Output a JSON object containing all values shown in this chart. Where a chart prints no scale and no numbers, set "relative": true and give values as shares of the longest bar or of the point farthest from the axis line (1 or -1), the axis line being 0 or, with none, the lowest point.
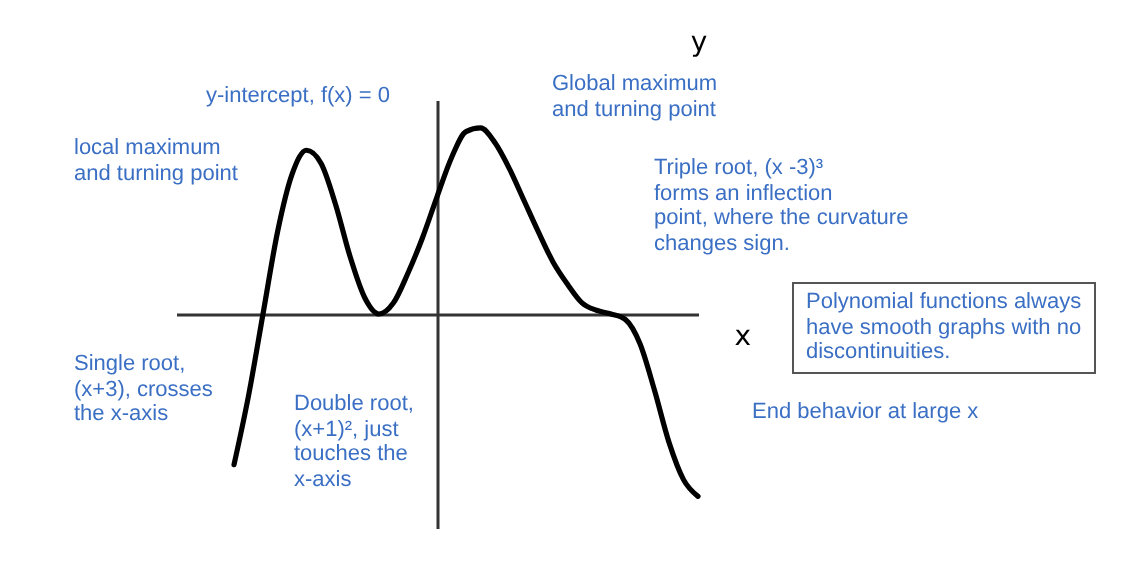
{
  "chart_data": {
    "type": "line",
    "relative": true,
    "xlabel": "x",
    "ylabel": "y",
    "color": "#000000",
    "categories": [
      null,
      null,
      null,
      null,
      null,
      null,
      null,
      null,
      null,
      null,
      null,
      null,
      null,
      null,
      null,
      null,
      null,
      null,
      null,
      null,
      null,
      null,
      null,
      null,
      null,
      null,
      null,
      null,
      null,
      null,
      null,
      null,
      null,
      null,
      null,
      null,
      null
    ],
    "values": [
      null,
      null,
      null,
      null,
      -0.81,
      -0.44,
      0,
      0.44,
      0.75,
      0.88,
      0.81,
      0.59,
      0.31,
      0.09,
      0,
      0.06,
      0.22,
      0.41,
      0.63,
      0.84,
      0.98,
      1,
      0.92,
      0.78,
      0.61,
      0.44,
      0.28,
      0.16,
      0.06,
      0.02,
      0,
      -0.03,
      -0.16,
      -0.41,
      -0.69,
      -0.89,
      -0.98
    ],
    "annotations": [
      "y-intercept, f(x) = 0",
      "Global maximum\nand turning point",
      "local maximum\nand turning point",
      "Triple root, (x -3)³\nforms an inflection\npoint, where the curvature\nchanges sign.",
      "Polynomial functions always\nhave smooth graphs with no\ndiscontinuities.",
      "Single root,\n(x+3), crosses\nthe x-axis",
      "Double root,\n(x+1)², just\ntouches the\nx-axis",
      "End behavior at large x"
    ]
  }
}
